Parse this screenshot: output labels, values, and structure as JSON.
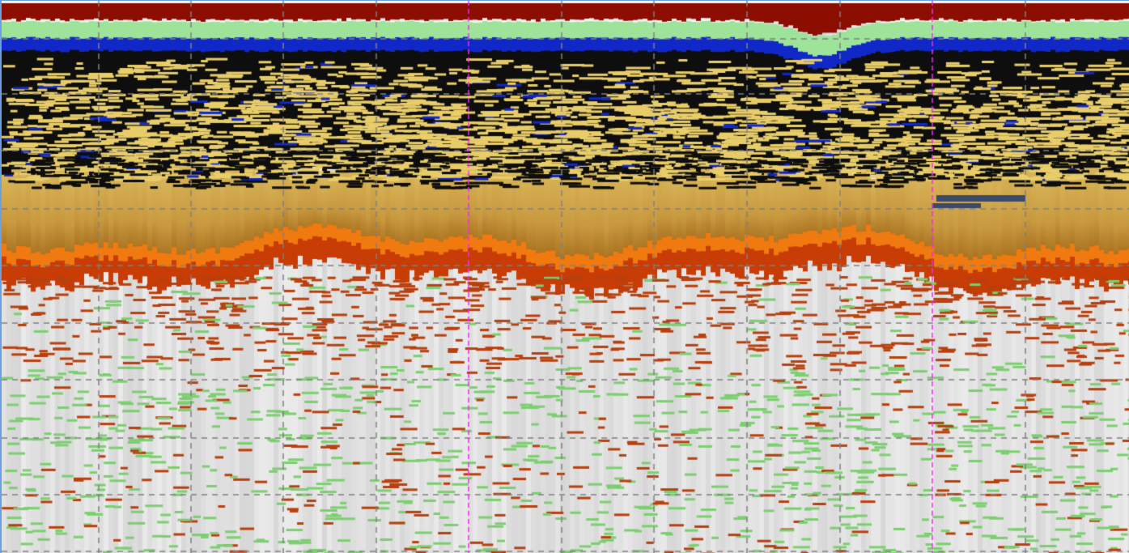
{
  "echogram": {
    "colors": {
      "surface_red": "#8b0e00",
      "surface_white": "#f4f4f4",
      "band_green": "#9ee39a",
      "band_blue": "#1028c8",
      "band_black": "#0e0e0e",
      "echo_yellow": "#e8cd6a",
      "layer_tan": "#d9b65a",
      "layer_brown": "#a66d1c",
      "bottom_orange": "#f07a10",
      "bottom_red": "#c83c06",
      "background_grey": "#dcdcdc",
      "speck_red": "#b8400e",
      "speck_green": "#7ccf70",
      "grid": "#808080",
      "marker": "#ff20ff",
      "frame": "#6aa0e0"
    },
    "grid": "on",
    "marker_lines": 2
  }
}
